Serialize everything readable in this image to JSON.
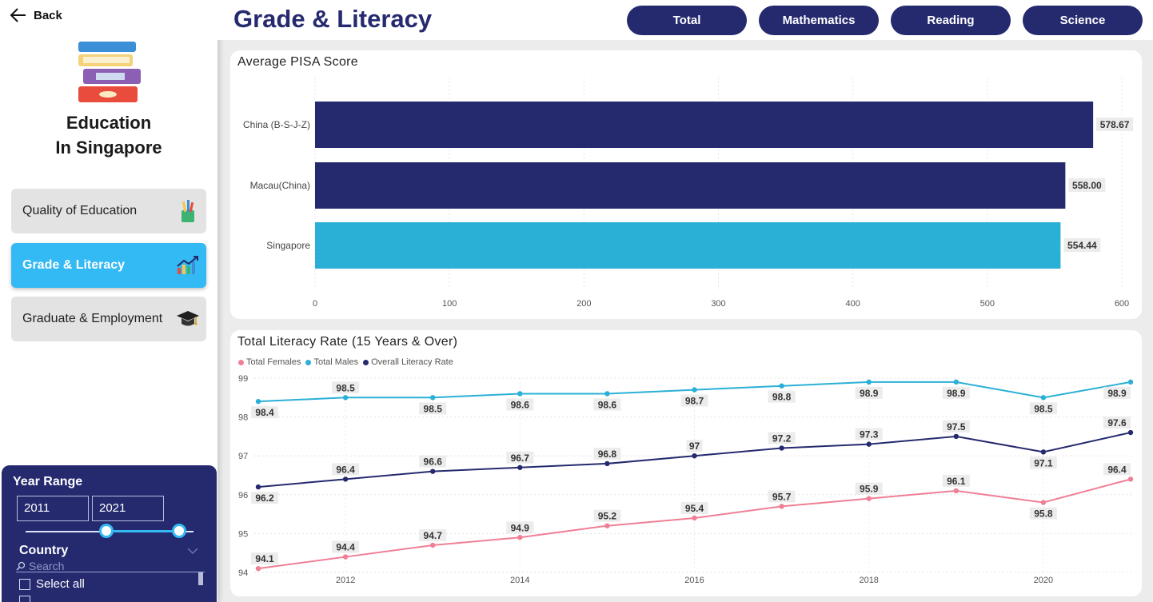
{
  "nav": {
    "back_label": "Back",
    "brand_line1": "Education",
    "brand_line2": "In Singapore",
    "items": [
      {
        "label": "Quality of Education",
        "icon": "pencil-cup-icon",
        "active": false
      },
      {
        "label": "Grade & Literacy",
        "icon": "growth-chart-icon",
        "active": true
      },
      {
        "label": "Graduate & Employment",
        "icon": "graduation-cap-icon",
        "active": false
      }
    ]
  },
  "filters": {
    "year_range_label": "Year Range",
    "year_from": "2011",
    "year_to": "2021",
    "country_label": "Country",
    "search_placeholder": "Search",
    "select_all_label": "Select all"
  },
  "header": {
    "title": "Grade & Literacy",
    "tabs": [
      "Total",
      "Mathematics",
      "Reading",
      "Science"
    ]
  },
  "colors": {
    "navy": "#252a6f",
    "cyan": "#2ab0d6",
    "pink": "#f07f95",
    "active_nav": "#33b9f3"
  },
  "chart_data": [
    {
      "type": "bar",
      "orientation": "horizontal",
      "title": "Average PISA Score",
      "categories": [
        "China (B-S-J-Z)",
        "Macau(China)",
        "Singapore"
      ],
      "values": [
        578.67,
        558.0,
        554.44
      ],
      "value_labels": [
        "578.67",
        "558.00",
        "554.44"
      ],
      "bar_colors": [
        "#252a6f",
        "#252a6f",
        "#2ab0d6"
      ],
      "xlim": [
        0,
        600
      ],
      "xticks": [
        0,
        100,
        200,
        300,
        400,
        500,
        600
      ],
      "grid": true
    },
    {
      "type": "line",
      "title": "Total Literacy Rate (15 Years & Over)",
      "x": [
        2011,
        2012,
        2013,
        2014,
        2015,
        2016,
        2017,
        2018,
        2019,
        2020,
        2021
      ],
      "xticks": [
        2012,
        2014,
        2016,
        2018,
        2020
      ],
      "ylim": [
        94,
        99
      ],
      "yticks": [
        94,
        95,
        96,
        97,
        98,
        99
      ],
      "legend_position": "top-left",
      "grid": true,
      "series": [
        {
          "name": "Total Females",
          "color": "#f07f95",
          "values": [
            94.1,
            94.4,
            94.7,
            94.9,
            95.2,
            95.4,
            95.7,
            95.9,
            96.1,
            95.8,
            96.4
          ]
        },
        {
          "name": "Total Males",
          "color": "#2ab0d6",
          "values": [
            98.4,
            98.5,
            98.5,
            98.6,
            98.6,
            98.7,
            98.8,
            98.9,
            98.9,
            98.5,
            98.9
          ]
        },
        {
          "name": "Overall Literacy Rate",
          "color": "#252a6f",
          "values": [
            96.2,
            96.4,
            96.6,
            96.7,
            96.8,
            97,
            97.2,
            97.3,
            97.5,
            97.1,
            97.6
          ]
        }
      ]
    }
  ]
}
